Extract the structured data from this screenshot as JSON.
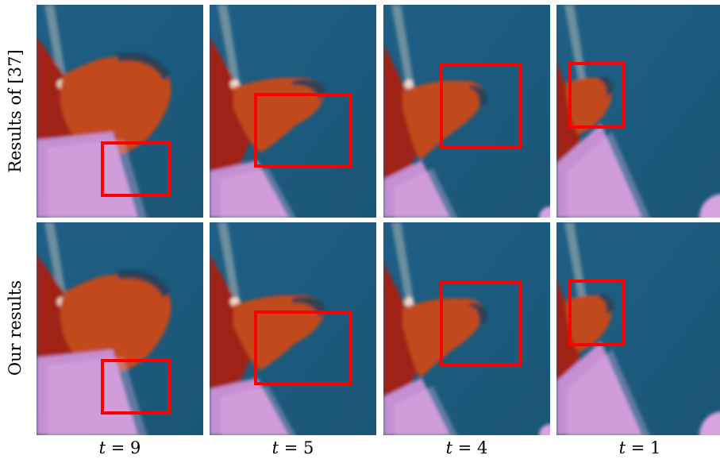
{
  "row_labels": [
    "Results of [37]",
    "Our results"
  ],
  "column_labels": [
    {
      "var": "t",
      "eq": " = ",
      "value": "9"
    },
    {
      "var": "t",
      "eq": " = ",
      "value": "5"
    },
    {
      "var": "t",
      "eq": " = ",
      "value": "4"
    },
    {
      "var": "t",
      "eq": " = ",
      "value": "1"
    }
  ],
  "highlight_color": "#ff0000"
}
